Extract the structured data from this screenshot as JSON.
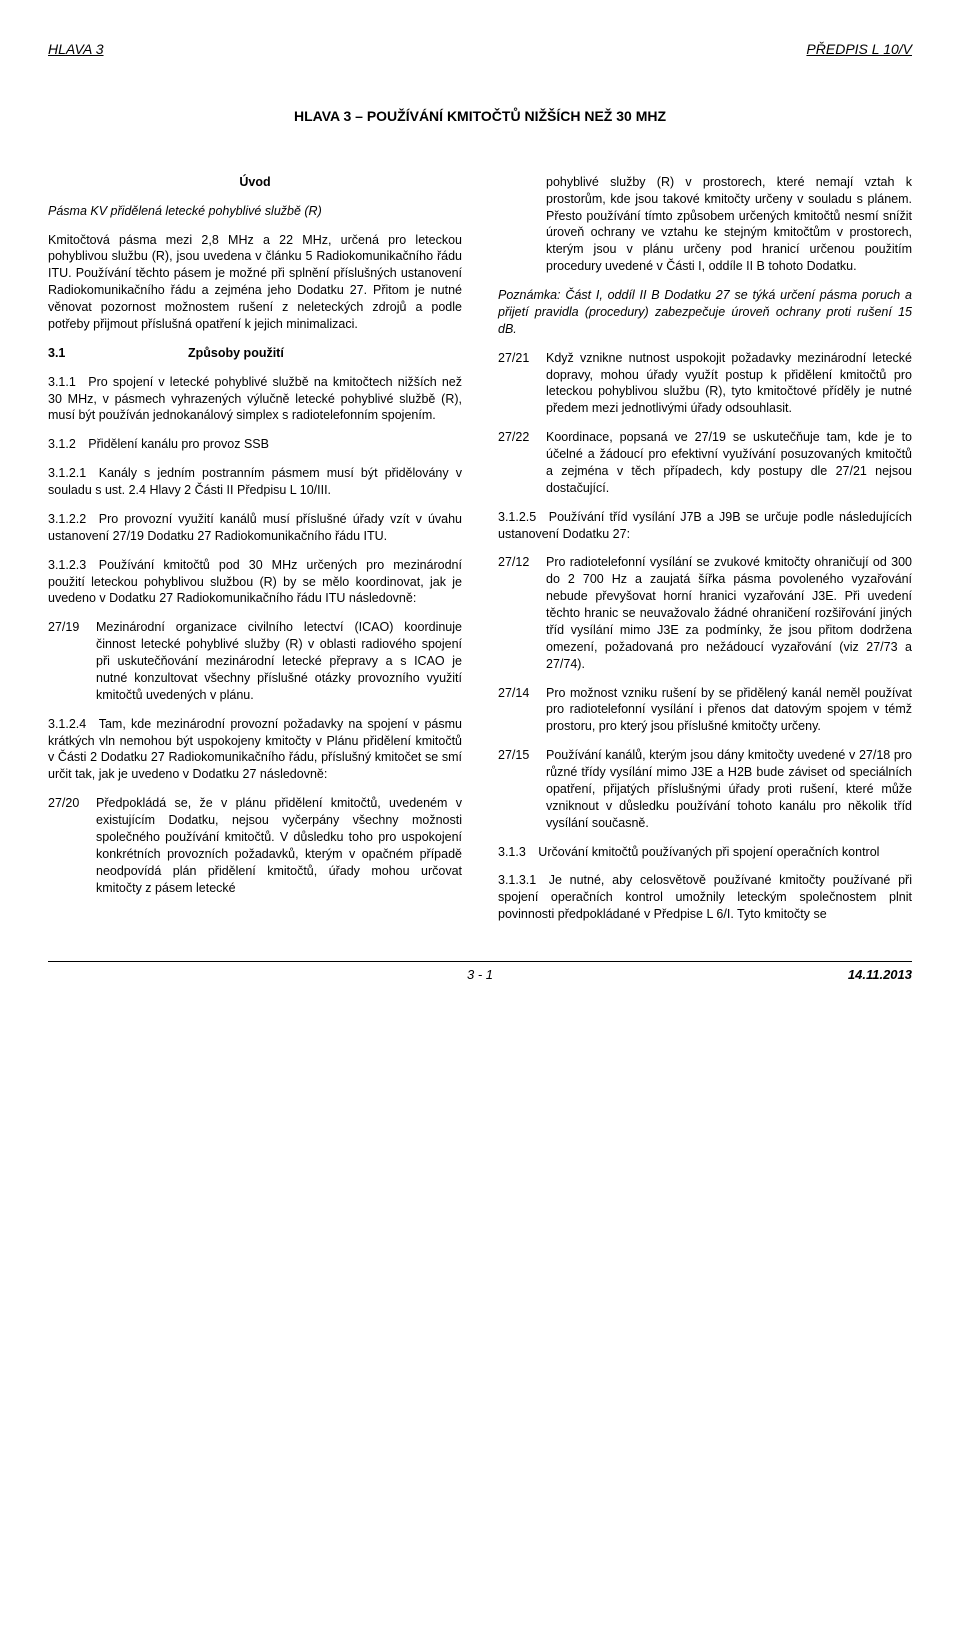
{
  "header": {
    "left": "HLAVA 3",
    "right": "PŘEDPIS L 10/V"
  },
  "title": "HLAVA 3 – POUŽÍVÁNÍ KMITOČTŮ NIŽŠÍCH NEŽ 30 MHZ",
  "left": {
    "uvod": "Úvod",
    "sub": "Pásma KV přidělená letecké pohyblivé službě (R)",
    "intro": "Kmitočtová pásma mezi 2,8 MHz a 22 MHz, určená pro leteckou pohyblivou službu (R), jsou uvedena v článku 5 Radiokomunikačního řádu ITU. Používání těchto pásem je možné při splnění příslušných ustanovení Radiokomunikačního řádu a zejména jeho Dodatku 27. Přitom je nutné věnovat pozornost možnostem rušení z neleteckých zdrojů a podle potřeby přijmout příslušná opatření k jejich minimalizaci.",
    "s31_num": "3.1",
    "s31_title": "Způsoby použití",
    "p311": "3.1.1 Pro spojení v letecké pohyblivé službě na kmitočtech nižších než 30 MHz, v pásmech vyhrazených výlučně letecké pohyblivé službě (R), musí být používán jednokanálový simplex s radiotelefonním spojením.",
    "p312": "3.1.2 Přidělení kanálu pro provoz SSB",
    "p3121": "3.1.2.1 Kanály s jedním postranním pásmem musí být přidělovány v souladu s ust. 2.4 Hlavy 2 Části II Předpisu L 10/III.",
    "p3122": "3.1.2.2 Pro provozní využití kanálů musí příslušné úřady vzít v úvahu ustanovení 27/19 Dodatku 27 Radiokomunikačního řádu ITU.",
    "p3123": "3.1.2.3 Používání kmitočtů pod 30 MHz určených pro mezinárodní použití leteckou pohyblivou službou (R) by se mělo koordinovat, jak je uvedeno v Dodatku 27 Radiokomunikačního řádu ITU následovně:",
    "i2719_num": "27/19",
    "i2719_text": "Mezinárodní organizace civilního letectví (ICAO) koordinuje činnost letecké pohyblivé služby (R) v oblasti radiového spojení při uskutečňování mezinárodní letecké přepravy a s ICAO je nutné konzultovat všechny příslušné otázky provozního využití kmitočtů uvedených v plánu.",
    "p3124": "3.1.2.4 Tam, kde mezinárodní provozní požadavky na spojení v pásmu krátkých vln nemohou být uspokojeny kmitočty v Plánu přidělení kmitočtů v Části 2 Dodatku 27 Radiokomunikačního řádu, příslušný kmitočet se smí určit tak, jak je uvedeno v Dodatku 27 následovně:",
    "i2720_num": "27/20",
    "i2720_text": "Předpokládá se, že v plánu přidělení kmitočtů, uvedeném v existujícím Dodatku, nejsou vyčerpány všechny možnosti společného používání kmitočtů. V důsledku toho pro uspokojení konkrétních provozních požadavků, kterým v opačném případě neodpovídá plán přidělení kmitočtů, úřady mohou určovat kmitočty z pásem letecké"
  },
  "right": {
    "cont": "pohyblivé služby (R) v prostorech, které nemají vztah k prostorům, kde jsou takové kmitočty určeny v souladu s plánem. Přesto používání tímto způsobem určených kmitočtů nesmí snížit úroveň ochrany ve vztahu ke stejným kmitočtům v prostorech, kterým jsou v plánu určeny pod hranicí určenou použitím procedury uvedené v Části I, oddíle II B tohoto Dodatku.",
    "note_label": "Poznámka:",
    "note_text": "Část I, oddíl II B Dodatku 27 se týká určení pásma poruch a přijetí pravidla (procedury) zabezpečuje úroveň ochrany proti rušení 15 dB.",
    "i2721_num": "27/21",
    "i2721_text": "Když vznikne nutnost uspokojit požadavky mezinárodní letecké dopravy, mohou úřady využít postup k přidělení kmitočtů pro leteckou pohyblivou službu (R), tyto kmitočtové příděly je nutné předem mezi jednotlivými úřady odsouhlasit.",
    "i2722_num": "27/22",
    "i2722_text": "Koordinace, popsaná ve 27/19 se uskutečňuje tam, kde je to účelné a žádoucí pro efektivní využívání posuzovaných kmitočtů a zejména v těch případech, kdy postupy dle 27/21 nejsou dostačující.",
    "p3125": "3.1.2.5 Používání tříd vysílání J7B a J9B se určuje podle následujících ustanovení Dodatku 27:",
    "i2712_num": "27/12",
    "i2712_text": "Pro radiotelefonní vysílání se zvukové kmitočty ohraničují od 300 do 2 700 Hz a zaujatá šířka pásma povoleného vyzařování nebude převyšovat horní hranici vyzařování J3E. Při uvedení těchto hranic se neuvažovalo žádné ohraničení rozšiřování jiných tříd vysílání mimo J3E za podmínky, že jsou přitom dodržena omezení, požadovaná pro nežádoucí vyzařování (viz 27/73 a 27/74).",
    "i2714_num": "27/14",
    "i2714_text": "Pro možnost vzniku rušení by se přidělený kanál neměl používat pro radiotelefonní vysílání i přenos dat datovým spojem v témž prostoru, pro který jsou příslušné kmitočty určeny.",
    "i2715_num": "27/15",
    "i2715_text": "Používání kanálů, kterým jsou dány kmitočty uvedené v 27/18 pro různé třídy vysílání mimo J3E a H2B bude záviset od speciálních opatření, přijatých příslušnými úřady proti rušení, které může vzniknout v důsledku používání tohoto kanálu pro několik tříd vysílání současně.",
    "p313": "3.1.3 Určování kmitočtů používaných při spojení operačních kontrol",
    "p3131": "3.1.3.1 Je nutné, aby celosvětově používané kmitočty používané při spojení operačních kontrol umožnily leteckým společnostem plnit povinnosti předpokládané v Předpise L 6/I. Tyto kmitočty se"
  },
  "footer": {
    "page": "3 - 1",
    "date": "14.11.2013"
  }
}
